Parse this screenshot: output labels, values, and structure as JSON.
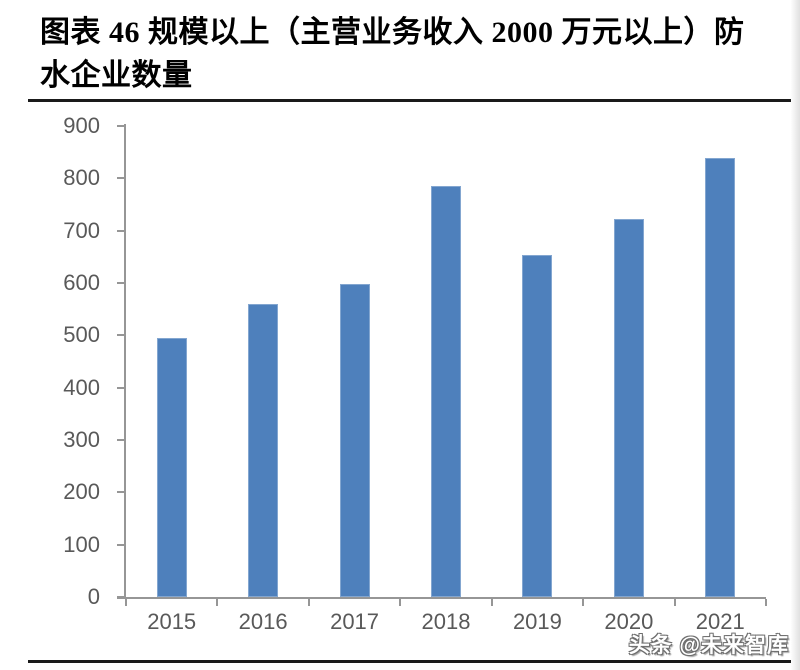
{
  "header": {
    "title_line1": "图表 46 规模以上（主营业务收入 2000 万元以上）防",
    "title_line2": "水企业数量"
  },
  "footer": {
    "watermark": "头条 @未来智库"
  },
  "colors": {
    "bar": "#4E80BC",
    "axis": "#969696",
    "tick_label": "#595959",
    "title_text": "#000000",
    "divider": "#1A1A1A",
    "watermark_fill": "#FFFFFF",
    "watermark_outline": "#6E6E6E"
  },
  "chart_data": {
    "type": "bar",
    "title": "图表 46 规模以上（主营业务收入 2000 万元以上）防水企业数量",
    "categories": [
      "2015",
      "2016",
      "2017",
      "2018",
      "2019",
      "2020",
      "2021"
    ],
    "values": [
      495,
      560,
      598,
      785,
      653,
      723,
      838
    ],
    "xlabel": "",
    "ylabel": "",
    "ylim": [
      0,
      900
    ],
    "ytick_step": 100,
    "yticks": [
      0,
      100,
      200,
      300,
      400,
      500,
      600,
      700,
      800,
      900
    ],
    "grid": false,
    "legend_position": "none",
    "bar_color": "#4E80BC"
  }
}
